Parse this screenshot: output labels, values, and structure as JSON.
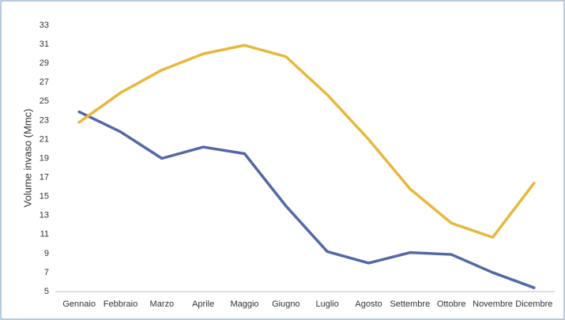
{
  "chart_data": {
    "type": "line",
    "y_label": "Volume invaso (Mmc)",
    "categories": [
      "Gennaio",
      "Febbraio",
      "Marzo",
      "Aprile",
      "Maggio",
      "Giugno",
      "Luglio",
      "Agosto",
      "Settembre",
      "Ottobre",
      "Novembre",
      "Dicembre"
    ],
    "series": [
      {
        "color": "#5468a6",
        "values": [
          23.9,
          21.8,
          19.0,
          20.2,
          19.5,
          14.0,
          9.2,
          8.0,
          9.1,
          8.9,
          7.0,
          5.4
        ]
      },
      {
        "color": "#e8b83c",
        "values": [
          22.8,
          25.9,
          28.3,
          30.0,
          30.9,
          29.7,
          25.7,
          21.0,
          15.8,
          12.2,
          10.7,
          16.4
        ]
      }
    ],
    "ylim": [
      5,
      33
    ],
    "yticks": [
      5,
      7,
      9,
      11,
      13,
      15,
      17,
      19,
      21,
      23,
      25,
      27,
      29,
      31,
      33
    ]
  }
}
